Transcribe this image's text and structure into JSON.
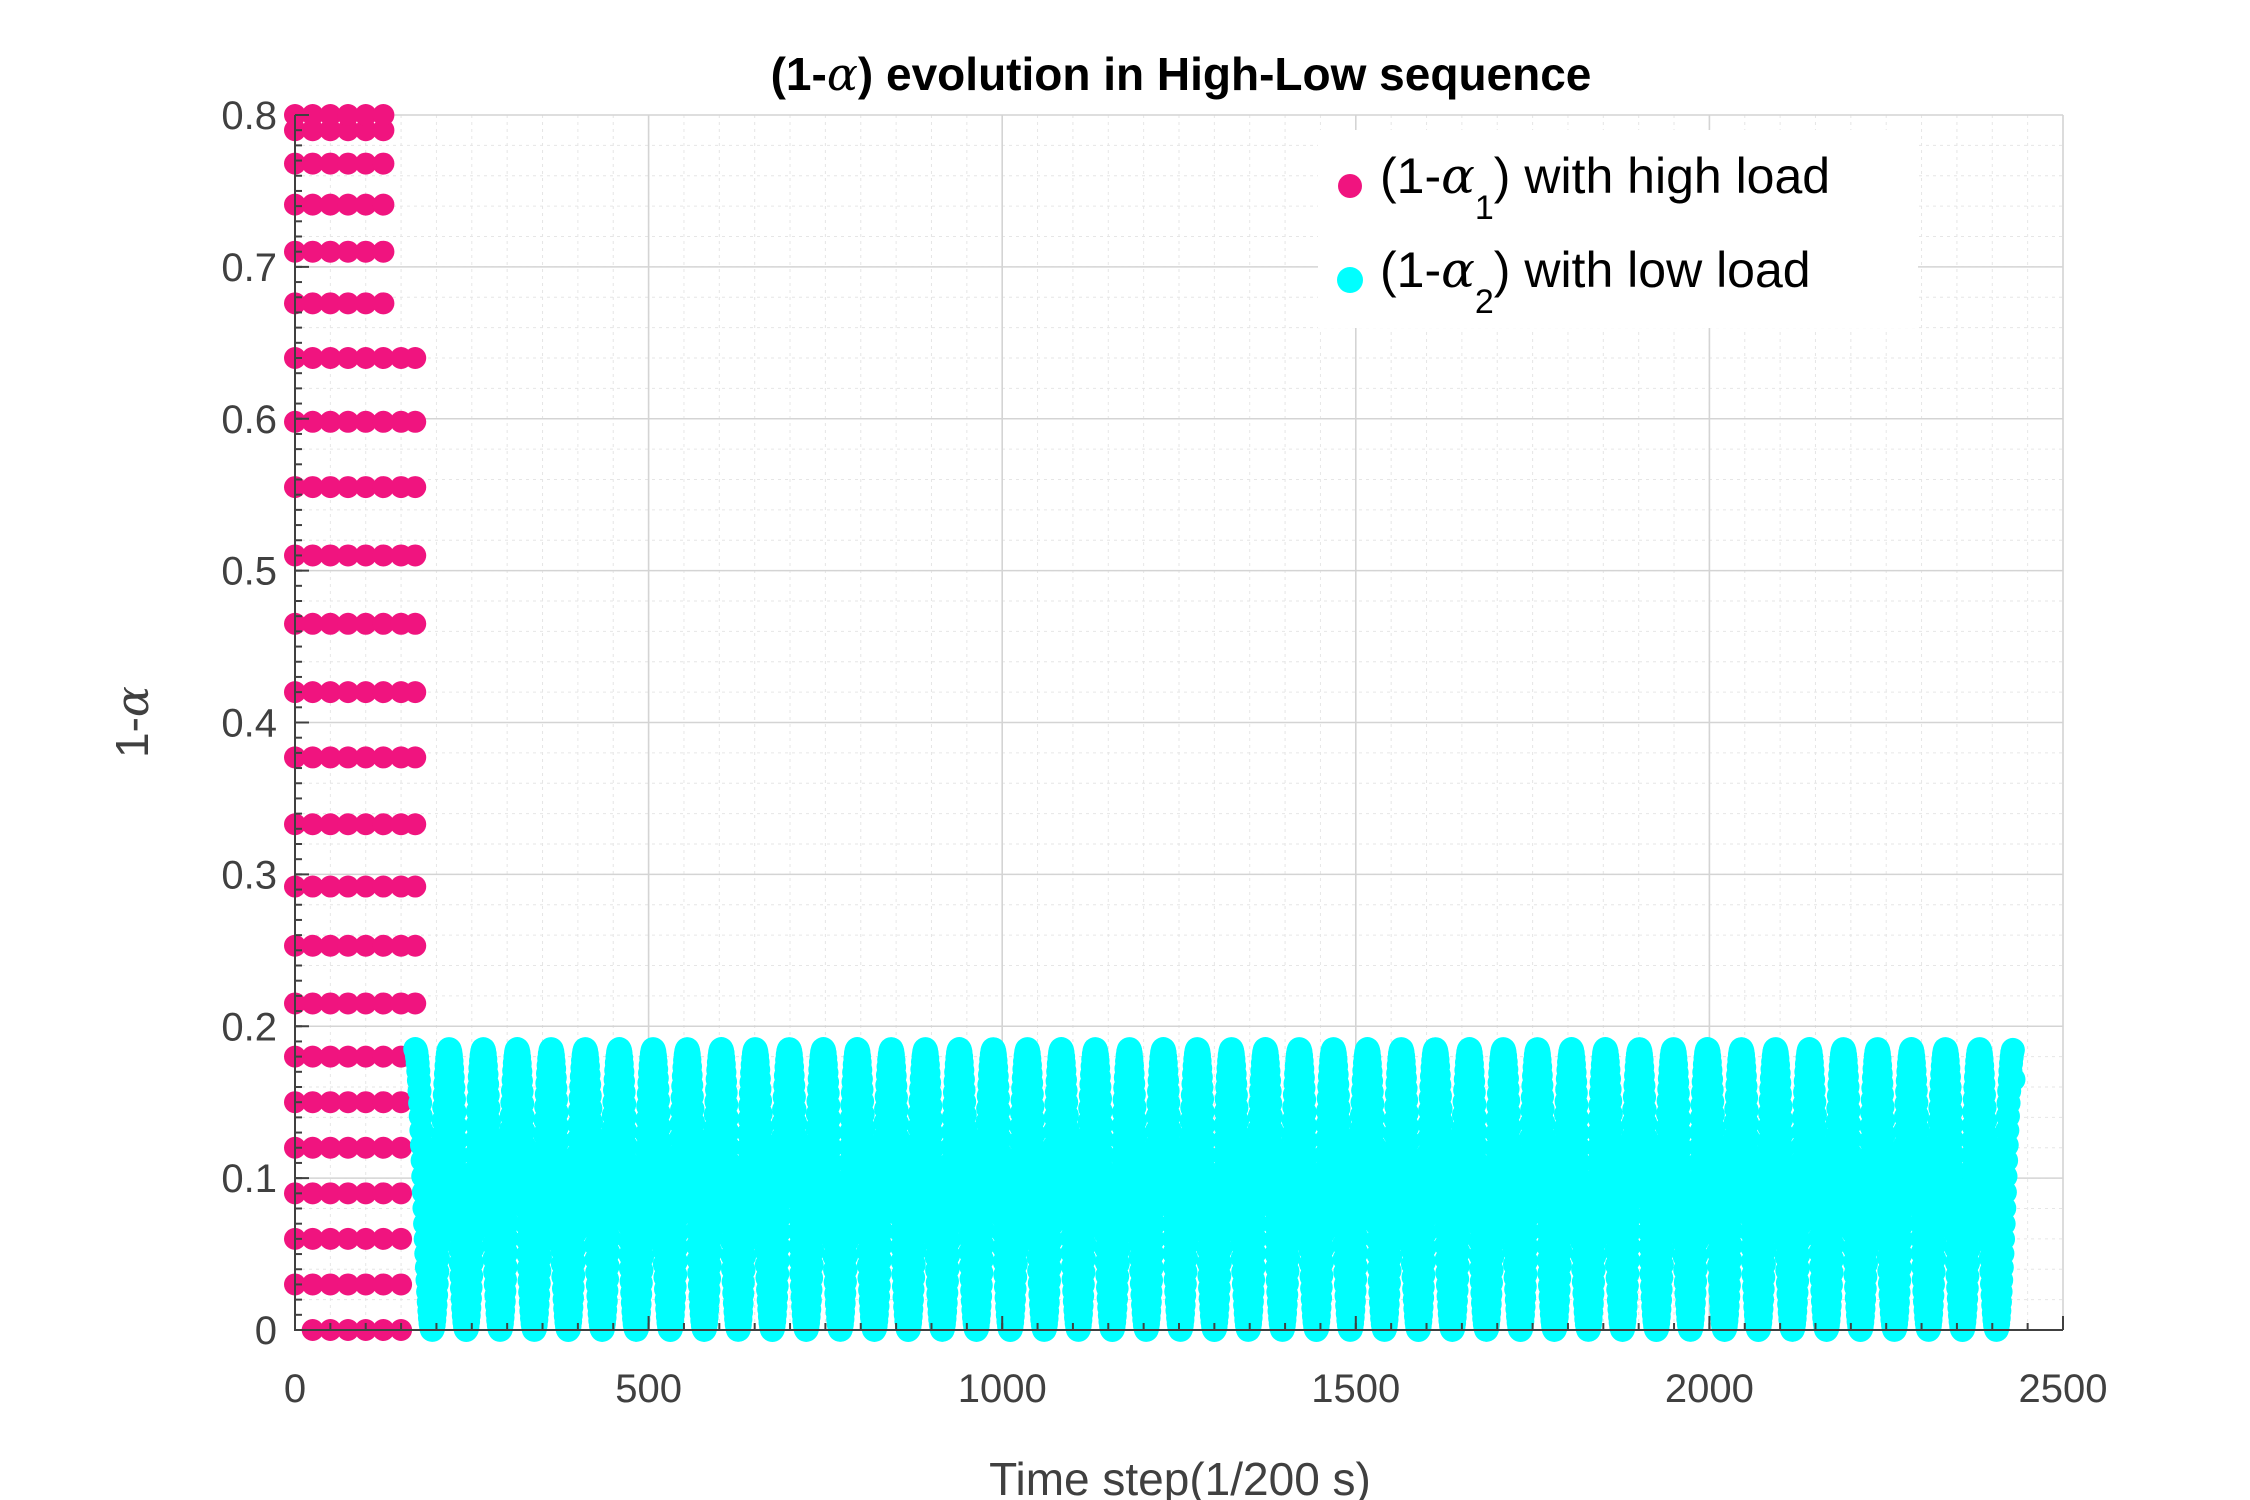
{
  "chart_data": {
    "type": "scatter",
    "title_prefix": "(1-",
    "title_symbol": "α",
    "title_suffix": ") evolution in High-Low sequence",
    "xlabel": "Time step(1/200 s)",
    "ylabel_prefix": "1-",
    "ylabel_symbol": "α",
    "xlim": [
      0,
      2500
    ],
    "ylim": [
      0,
      0.8
    ],
    "xticks": [
      "0",
      "500",
      "1000",
      "1500",
      "2000",
      "2500"
    ],
    "yticks": [
      "0",
      "0.1",
      "0.2",
      "0.3",
      "0.4",
      "0.5",
      "0.6",
      "0.7",
      "0.8"
    ],
    "grid": true,
    "minor_grid": true,
    "legend_position": "top-right",
    "series": [
      {
        "name_prefix": "(1-",
        "name_symbol": "α",
        "name_subscript": "1",
        "name_suffix": ") with high load",
        "color": "#f0147f",
        "pattern": "staircase",
        "x_range": [
          0,
          175
        ],
        "y_range": [
          0,
          0.8
        ],
        "column_x": [
          0,
          25,
          50,
          75,
          100,
          125,
          150,
          170
        ],
        "levels": [
          0,
          0.03,
          0.06,
          0.09,
          0.12,
          0.15,
          0.18,
          0.215,
          0.253,
          0.292,
          0.333,
          0.377,
          0.42,
          0.465,
          0.51,
          0.555,
          0.598,
          0.64,
          0.676,
          0.71,
          0.741,
          0.768,
          0.79,
          0.8
        ]
      },
      {
        "name_prefix": "(1-",
        "name_symbol": "α",
        "name_subscript": "2",
        "name_suffix": ") with low load",
        "color": "#00ffff",
        "pattern": "oscillation",
        "x_range": [
          170,
          2430
        ],
        "y_range": [
          0,
          0.185
        ],
        "cycles": 47,
        "final_value": 0.165
      }
    ]
  }
}
